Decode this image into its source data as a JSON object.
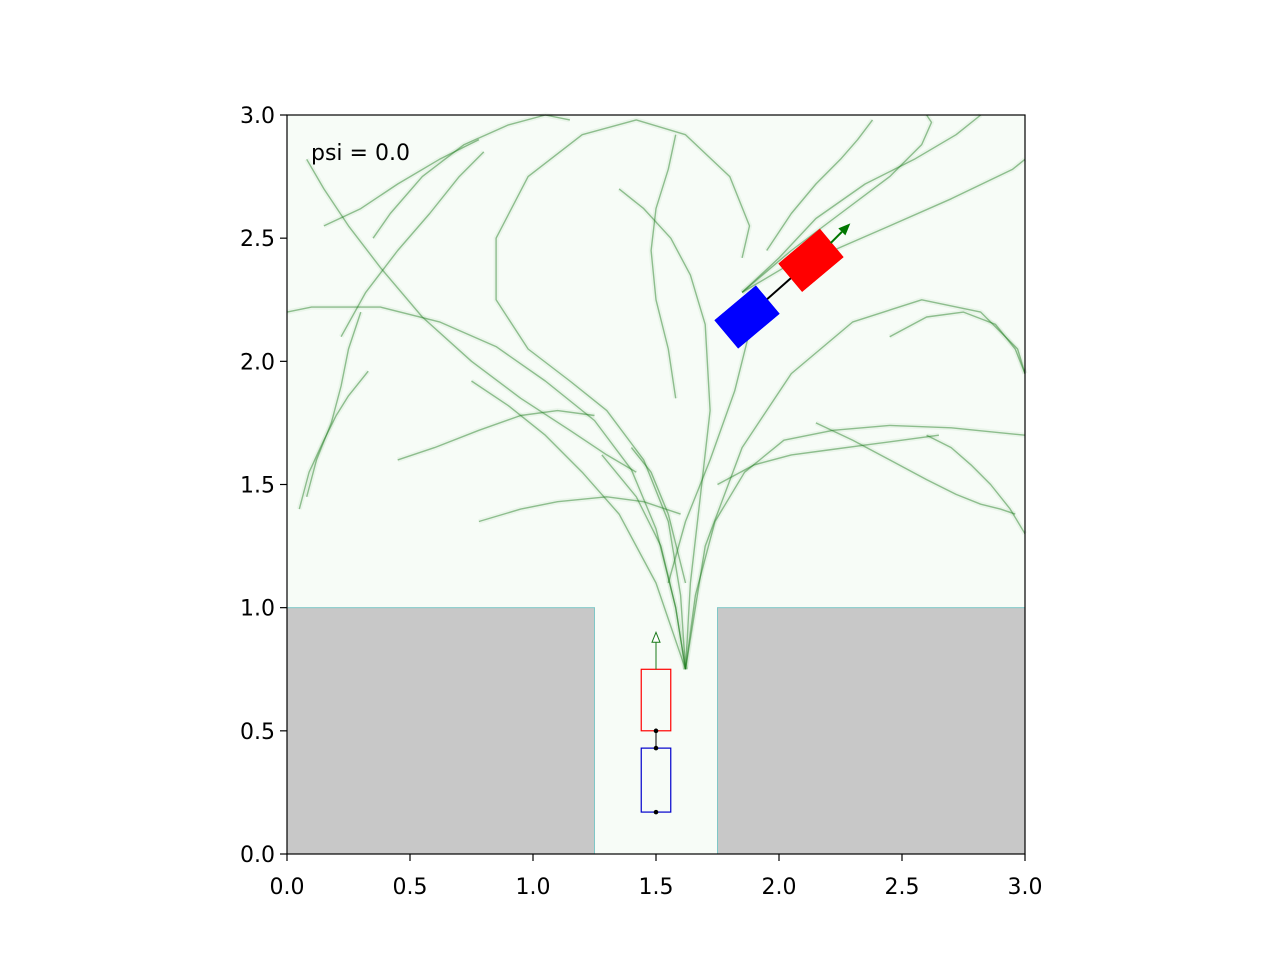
{
  "chart_data": {
    "type": "scatter",
    "title": "",
    "xlabel": "",
    "ylabel": "",
    "xlim": [
      0.0,
      3.0
    ],
    "ylim": [
      0.0,
      3.0
    ],
    "grid": false,
    "x_ticks": [
      "0.0",
      "0.5",
      "1.0",
      "1.5",
      "2.0",
      "2.5",
      "3.0"
    ],
    "y_ticks": [
      "0.0",
      "0.5",
      "1.0",
      "1.5",
      "2.0",
      "2.5",
      "3.0"
    ],
    "annotation": "psi = 0.0",
    "obstacles": [
      {
        "x": [
          0.0,
          1.25
        ],
        "y": [
          0.0,
          1.0
        ]
      },
      {
        "x": [
          1.75,
          3.0
        ],
        "y": [
          0.0,
          1.0
        ]
      }
    ],
    "start_vehicle": {
      "tractor": {
        "cx": 1.5,
        "cy": 0.625,
        "length": 0.25,
        "width": 0.12,
        "heading_deg": 90
      },
      "trailer": {
        "cx": 1.5,
        "cy": 0.3,
        "length": 0.26,
        "width": 0.12,
        "heading_deg": 90
      },
      "hitch_points": [
        [
          1.5,
          0.5
        ],
        [
          1.5,
          0.43
        ],
        [
          1.5,
          0.17
        ]
      ]
    },
    "current_vehicle": {
      "tractor": {
        "cx": 2.13,
        "cy": 2.41,
        "length": 0.22,
        "width": 0.15,
        "heading_deg": 40
      },
      "trailer": {
        "cx": 1.87,
        "cy": 2.18,
        "length": 0.22,
        "width": 0.15,
        "heading_deg": 40
      },
      "arrow": {
        "from": [
          2.21,
          2.48
        ],
        "to": [
          2.29,
          2.56
        ]
      }
    },
    "trajectories": [
      {
        "x": [
          1.62,
          1.58,
          1.52,
          1.42,
          1.28
        ],
        "y": [
          0.75,
          1.0,
          1.25,
          1.45,
          1.62
        ]
      },
      {
        "x": [
          1.62,
          1.5,
          1.35,
          1.2,
          1.05,
          0.9,
          0.75
        ],
        "y": [
          0.75,
          1.1,
          1.38,
          1.55,
          1.7,
          1.82,
          1.92
        ]
      },
      {
        "x": [
          1.62,
          1.66,
          1.74,
          1.86,
          2.02,
          2.22,
          2.45,
          2.7,
          3.0
        ],
        "y": [
          0.75,
          1.05,
          1.35,
          1.55,
          1.68,
          1.72,
          1.74,
          1.73,
          1.7
        ]
      },
      {
        "x": [
          1.62,
          1.64,
          1.68,
          1.72,
          1.7,
          1.64,
          1.56,
          1.45,
          1.35
        ],
        "y": [
          0.75,
          1.1,
          1.45,
          1.8,
          2.15,
          2.35,
          2.5,
          2.62,
          2.7
        ]
      },
      {
        "x": [
          1.62,
          1.7,
          1.85,
          2.05,
          2.3,
          2.58,
          2.82,
          2.97,
          3.0
        ],
        "y": [
          0.75,
          1.25,
          1.65,
          1.95,
          2.16,
          2.25,
          2.2,
          2.05,
          1.95
        ]
      },
      {
        "x": [
          1.62,
          1.58,
          1.5,
          1.4,
          1.25,
          1.05,
          0.85,
          0.62,
          0.38,
          0.1,
          0.0
        ],
        "y": [
          0.75,
          1.0,
          1.32,
          1.56,
          1.76,
          1.92,
          2.06,
          2.16,
          2.22,
          2.22,
          2.2
        ]
      },
      {
        "x": [
          1.62,
          1.6,
          1.55,
          1.45,
          1.3,
          1.15,
          0.98,
          0.85,
          0.85,
          0.98,
          1.2,
          1.42,
          1.62,
          1.8,
          1.88,
          1.85
        ],
        "y": [
          0.75,
          1.05,
          1.35,
          1.6,
          1.8,
          1.92,
          2.05,
          2.25,
          2.5,
          2.75,
          2.92,
          2.98,
          2.92,
          2.75,
          2.55,
          2.42
        ]
      },
      {
        "x": [
          1.85,
          2.0,
          2.15,
          2.35,
          2.55,
          2.72,
          2.82
        ],
        "y": [
          2.28,
          2.42,
          2.58,
          2.72,
          2.82,
          2.92,
          3.0
        ]
      },
      {
        "x": [
          1.85,
          2.02,
          2.22,
          2.45,
          2.7,
          2.95,
          3.0
        ],
        "y": [
          2.28,
          2.38,
          2.45,
          2.55,
          2.66,
          2.78,
          2.82
        ]
      },
      {
        "x": [
          1.85,
          2.05,
          2.25,
          2.45,
          2.58,
          2.62,
          2.6
        ],
        "y": [
          2.28,
          2.45,
          2.6,
          2.75,
          2.88,
          2.97,
          3.0
        ]
      },
      {
        "x": [
          1.42,
          1.3,
          1.15,
          0.95,
          0.75,
          0.55,
          0.38,
          0.25,
          0.15,
          0.08
        ],
        "y": [
          1.55,
          1.62,
          1.72,
          1.85,
          2.0,
          2.18,
          2.38,
          2.55,
          2.7,
          2.82
        ]
      },
      {
        "x": [
          0.35,
          0.42,
          0.55,
          0.72,
          0.9,
          1.05,
          1.15
        ],
        "y": [
          2.5,
          2.6,
          2.75,
          2.88,
          2.96,
          3.0,
          2.98
        ]
      },
      {
        "x": [
          0.08,
          0.12,
          0.18,
          0.22,
          0.25,
          0.3
        ],
        "y": [
          1.45,
          1.6,
          1.75,
          1.9,
          2.05,
          2.2
        ]
      },
      {
        "x": [
          0.05,
          0.09,
          0.15,
          0.2,
          0.25,
          0.33
        ],
        "y": [
          1.4,
          1.55,
          1.68,
          1.78,
          1.86,
          1.96
        ]
      },
      {
        "x": [
          0.22,
          0.32,
          0.45,
          0.58,
          0.7,
          0.8
        ],
        "y": [
          2.1,
          2.28,
          2.45,
          2.6,
          2.75,
          2.85
        ]
      },
      {
        "x": [
          0.15,
          0.3,
          0.45,
          0.62,
          0.78
        ],
        "y": [
          2.55,
          2.62,
          2.72,
          2.82,
          2.9
        ]
      },
      {
        "x": [
          1.55,
          1.62,
          1.72,
          1.82,
          1.88,
          1.9
        ],
        "y": [
          1.1,
          1.35,
          1.6,
          1.88,
          2.12,
          2.3
        ]
      },
      {
        "x": [
          1.58,
          1.55,
          1.5,
          1.48,
          1.5,
          1.55,
          1.58
        ],
        "y": [
          1.85,
          2.05,
          2.25,
          2.45,
          2.62,
          2.78,
          2.92
        ]
      },
      {
        "x": [
          2.15,
          2.3,
          2.45,
          2.6,
          2.72,
          2.82,
          2.9,
          2.96
        ],
        "y": [
          1.75,
          1.68,
          1.6,
          1.52,
          1.46,
          1.42,
          1.4,
          1.38
        ]
      },
      {
        "x": [
          2.6,
          2.7,
          2.78,
          2.86,
          2.94,
          3.0
        ],
        "y": [
          1.7,
          1.65,
          1.58,
          1.5,
          1.4,
          1.3
        ]
      },
      {
        "x": [
          2.45,
          2.6,
          2.75,
          2.88,
          2.96,
          3.0
        ],
        "y": [
          2.1,
          2.18,
          2.2,
          2.15,
          2.05,
          1.95
        ]
      },
      {
        "x": [
          1.4,
          1.48,
          1.55,
          1.62
        ],
        "y": [
          1.65,
          1.55,
          1.38,
          1.1
        ]
      },
      {
        "x": [
          0.45,
          0.6,
          0.78,
          0.95,
          1.1,
          1.25
        ],
        "y": [
          1.6,
          1.65,
          1.72,
          1.78,
          1.8,
          1.78
        ]
      },
      {
        "x": [
          0.78,
          0.95,
          1.1,
          1.3,
          1.45,
          1.6
        ],
        "y": [
          1.35,
          1.4,
          1.43,
          1.45,
          1.43,
          1.38
        ]
      },
      {
        "x": [
          1.75,
          1.9,
          2.05,
          2.2,
          2.35,
          2.5,
          2.65
        ],
        "y": [
          1.5,
          1.58,
          1.62,
          1.64,
          1.66,
          1.68,
          1.7
        ]
      },
      {
        "x": [
          1.95,
          2.05,
          2.15,
          2.25,
          2.32,
          2.38
        ],
        "y": [
          2.45,
          2.6,
          2.72,
          2.82,
          2.9,
          2.98
        ]
      }
    ]
  }
}
